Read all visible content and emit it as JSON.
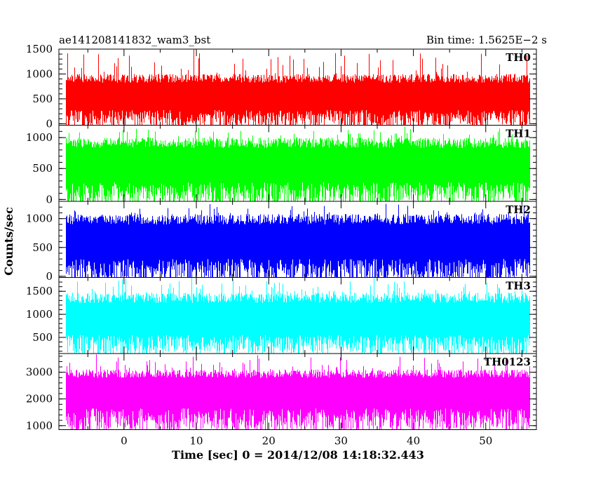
{
  "chart_data": {
    "type": "line",
    "title": "ae141208141832_wam3_bst",
    "subtitle": "Bin time: 1.5625E−2 s",
    "xlabel": "Time [sec] 0 = 2014/12/08 14:18:32.443",
    "ylabel": "Counts/sec",
    "xlim": [
      -9,
      57
    ],
    "data_x_range": [
      -8,
      56
    ],
    "bin_time_s": 0.015625,
    "x_ticks": [
      0,
      10,
      20,
      30,
      40,
      50
    ],
    "x_tick_labels": [
      "0",
      "10",
      "20",
      "30",
      "40",
      "50"
    ],
    "grid": false,
    "legend": "none",
    "panels": [
      {
        "name": "TH0",
        "color": "#ff0000",
        "ylim": [
          -30,
          1500
        ],
        "y_ticks": [
          0,
          500,
          1000,
          1500
        ],
        "y_tick_labels": [
          "0",
          "500",
          "1000",
          "1500"
        ],
        "baseline": 500,
        "typical_low": 90,
        "typical_high": 1000,
        "max_value": 1500,
        "spike_time": 9.6
      },
      {
        "name": "TH1",
        "color": "#00ff00",
        "ylim": [
          -30,
          1200
        ],
        "y_ticks": [
          0,
          500,
          1000
        ],
        "y_tick_labels": [
          "0",
          "500",
          "1000"
        ],
        "baseline": 520,
        "typical_low": 80,
        "typical_high": 1000,
        "max_value": 1200
      },
      {
        "name": "TH2",
        "color": "#0000ff",
        "ylim": [
          -20,
          1300
        ],
        "y_ticks": [
          0,
          500,
          1000
        ],
        "y_tick_labels": [
          "0",
          "500",
          "1000"
        ],
        "baseline": 560,
        "typical_low": 90,
        "typical_high": 1080,
        "max_value": 1300
      },
      {
        "name": "TH3",
        "color": "#00ffff",
        "ylim": [
          150,
          1800
        ],
        "y_ticks": [
          500,
          1000,
          1500
        ],
        "y_tick_labels": [
          "500",
          "1000",
          "1500"
        ],
        "baseline": 830,
        "typical_low": 330,
        "typical_high": 1470,
        "max_value": 1800
      },
      {
        "name": "TH0123",
        "color": "#ff00ff",
        "ylim": [
          850,
          3700
        ],
        "y_ticks": [
          1000,
          2000,
          3000
        ],
        "y_tick_labels": [
          "1000",
          "2000",
          "3000"
        ],
        "baseline": 2200,
        "typical_low": 1200,
        "typical_high": 3100,
        "max_value": 3700
      }
    ]
  }
}
